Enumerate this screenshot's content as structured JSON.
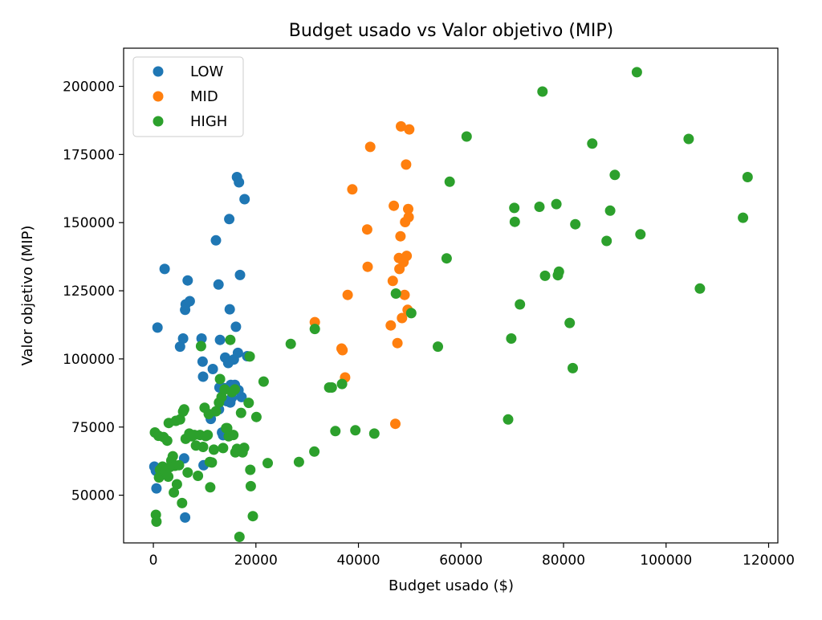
{
  "chart_data": {
    "type": "scatter",
    "title": "Budget usado vs Valor objetivo (MIP)",
    "xlabel": "Budget usado ($)",
    "ylabel": "Valor objetivo (MIP)",
    "xlim": [
      -5800,
      121800
    ],
    "ylim": [
      32500,
      214000
    ],
    "x_ticks": [
      0,
      20000,
      40000,
      60000,
      80000,
      100000,
      120000
    ],
    "y_ticks": [
      50000,
      75000,
      100000,
      125000,
      150000,
      175000,
      200000
    ],
    "grid": false,
    "legend_position": "top-left",
    "series": [
      {
        "name": "LOW",
        "color": "#1f77b4",
        "points": [
          [
            200,
            60500
          ],
          [
            500,
            59000
          ],
          [
            600,
            52500
          ],
          [
            800,
            111500
          ],
          [
            2200,
            133000
          ],
          [
            5200,
            104500
          ],
          [
            5800,
            107500
          ],
          [
            6200,
            118000
          ],
          [
            6300,
            120000
          ],
          [
            6700,
            128800
          ],
          [
            7100,
            121200
          ],
          [
            6000,
            63500
          ],
          [
            6200,
            41800
          ],
          [
            9400,
            107500
          ],
          [
            9600,
            99000
          ],
          [
            9700,
            93500
          ],
          [
            9800,
            61000
          ],
          [
            11200,
            78000
          ],
          [
            11600,
            96300
          ],
          [
            12200,
            143500
          ],
          [
            12700,
            127300
          ],
          [
            12800,
            81500
          ],
          [
            12900,
            89500
          ],
          [
            13000,
            107000
          ],
          [
            13400,
            73000
          ],
          [
            13600,
            72000
          ],
          [
            13800,
            89300
          ],
          [
            14000,
            100500
          ],
          [
            14300,
            84500
          ],
          [
            14600,
            98500
          ],
          [
            14800,
            151300
          ],
          [
            14900,
            118200
          ],
          [
            15000,
            84000
          ],
          [
            15100,
            90500
          ],
          [
            15300,
            85800
          ],
          [
            15500,
            89800
          ],
          [
            15700,
            99800
          ],
          [
            15900,
            90500
          ],
          [
            16100,
            111800
          ],
          [
            16300,
            166700
          ],
          [
            16500,
            102200
          ],
          [
            16600,
            88500
          ],
          [
            16700,
            164800
          ],
          [
            16900,
            130800
          ],
          [
            17200,
            86000
          ],
          [
            17800,
            158600
          ],
          [
            18300,
            101000
          ]
        ]
      },
      {
        "name": "MID",
        "color": "#ff7f0e",
        "points": [
          [
            31500,
            113500
          ],
          [
            36700,
            103800
          ],
          [
            36900,
            103200
          ],
          [
            37400,
            93200
          ],
          [
            37900,
            123500
          ],
          [
            38800,
            162200
          ],
          [
            41700,
            147500
          ],
          [
            41800,
            133800
          ],
          [
            42300,
            177800
          ],
          [
            46300,
            112300
          ],
          [
            46700,
            128600
          ],
          [
            46900,
            156200
          ],
          [
            47200,
            76200
          ],
          [
            47600,
            105800
          ],
          [
            47900,
            137000
          ],
          [
            48000,
            133000
          ],
          [
            48200,
            145000
          ],
          [
            48300,
            185300
          ],
          [
            48500,
            115000
          ],
          [
            48800,
            135500
          ],
          [
            49000,
            123500
          ],
          [
            49100,
            150200
          ],
          [
            49300,
            171300
          ],
          [
            49400,
            137800
          ],
          [
            49600,
            118000
          ],
          [
            49700,
            155000
          ],
          [
            49800,
            152000
          ],
          [
            49900,
            184200
          ]
        ]
      },
      {
        "name": "HIGH",
        "color": "#2ca02c",
        "points": [
          [
            300,
            73000
          ],
          [
            500,
            42800
          ],
          [
            600,
            40300
          ],
          [
            1000,
            71800
          ],
          [
            1100,
            56500
          ],
          [
            1300,
            59300
          ],
          [
            1500,
            57500
          ],
          [
            1800,
            60500
          ],
          [
            2000,
            71300
          ],
          [
            2300,
            58500
          ],
          [
            2500,
            59000
          ],
          [
            2700,
            70000
          ],
          [
            2900,
            56800
          ],
          [
            3000,
            76500
          ],
          [
            3200,
            60300
          ],
          [
            3500,
            62700
          ],
          [
            3800,
            64300
          ],
          [
            4000,
            51000
          ],
          [
            4200,
            60800
          ],
          [
            4400,
            77300
          ],
          [
            4600,
            54000
          ],
          [
            5000,
            61000
          ],
          [
            5200,
            77800
          ],
          [
            5600,
            47100
          ],
          [
            5800,
            80700
          ],
          [
            6000,
            81500
          ],
          [
            6300,
            70700
          ],
          [
            6700,
            58300
          ],
          [
            7000,
            72600
          ],
          [
            7500,
            71600
          ],
          [
            8000,
            72100
          ],
          [
            8300,
            68200
          ],
          [
            8700,
            57100
          ],
          [
            9100,
            72100
          ],
          [
            9300,
            104700
          ],
          [
            9700,
            67700
          ],
          [
            10000,
            82100
          ],
          [
            10200,
            71700
          ],
          [
            10600,
            72100
          ],
          [
            10800,
            79800
          ],
          [
            11000,
            62200
          ],
          [
            11100,
            52900
          ],
          [
            11400,
            62000
          ],
          [
            11800,
            66700
          ],
          [
            12200,
            80800
          ],
          [
            12800,
            84000
          ],
          [
            13000,
            92600
          ],
          [
            13300,
            86000
          ],
          [
            13600,
            67300
          ],
          [
            13900,
            88800
          ],
          [
            14200,
            74600
          ],
          [
            14400,
            74600
          ],
          [
            14700,
            71600
          ],
          [
            15000,
            107000
          ],
          [
            15300,
            87800
          ],
          [
            15600,
            72100
          ],
          [
            15900,
            88800
          ],
          [
            16000,
            65700
          ],
          [
            16300,
            67000
          ],
          [
            16500,
            66200
          ],
          [
            16800,
            34700
          ],
          [
            17100,
            80200
          ],
          [
            17400,
            65700
          ],
          [
            17700,
            67400
          ],
          [
            18600,
            83900
          ],
          [
            18800,
            100900
          ],
          [
            18900,
            59300
          ],
          [
            19000,
            53300
          ],
          [
            19400,
            42300
          ],
          [
            20100,
            78700
          ],
          [
            21500,
            91700
          ],
          [
            22300,
            61800
          ],
          [
            26800,
            105500
          ],
          [
            28400,
            62200
          ],
          [
            31400,
            66000
          ],
          [
            31500,
            111000
          ],
          [
            34300,
            89500
          ],
          [
            34800,
            89500
          ],
          [
            35500,
            73500
          ],
          [
            36800,
            90800
          ],
          [
            39400,
            73800
          ],
          [
            43100,
            72600
          ],
          [
            47300,
            124000
          ],
          [
            50300,
            116800
          ],
          [
            55500,
            104500
          ],
          [
            57200,
            136900
          ],
          [
            57800,
            165000
          ],
          [
            61100,
            181600
          ],
          [
            69200,
            77800
          ],
          [
            69800,
            107500
          ],
          [
            70400,
            155400
          ],
          [
            70500,
            150300
          ],
          [
            71500,
            120000
          ],
          [
            75300,
            155800
          ],
          [
            75900,
            198100
          ],
          [
            76400,
            130500
          ],
          [
            78600,
            156800
          ],
          [
            78900,
            130700
          ],
          [
            79100,
            132000
          ],
          [
            81200,
            113200
          ],
          [
            81800,
            96600
          ],
          [
            82300,
            149400
          ],
          [
            85600,
            179000
          ],
          [
            88400,
            143300
          ],
          [
            89100,
            154400
          ],
          [
            90000,
            167500
          ],
          [
            94300,
            205200
          ],
          [
            95000,
            145700
          ],
          [
            104400,
            180700
          ],
          [
            106600,
            125800
          ],
          [
            115000,
            151800
          ],
          [
            115900,
            166700
          ]
        ]
      }
    ]
  }
}
